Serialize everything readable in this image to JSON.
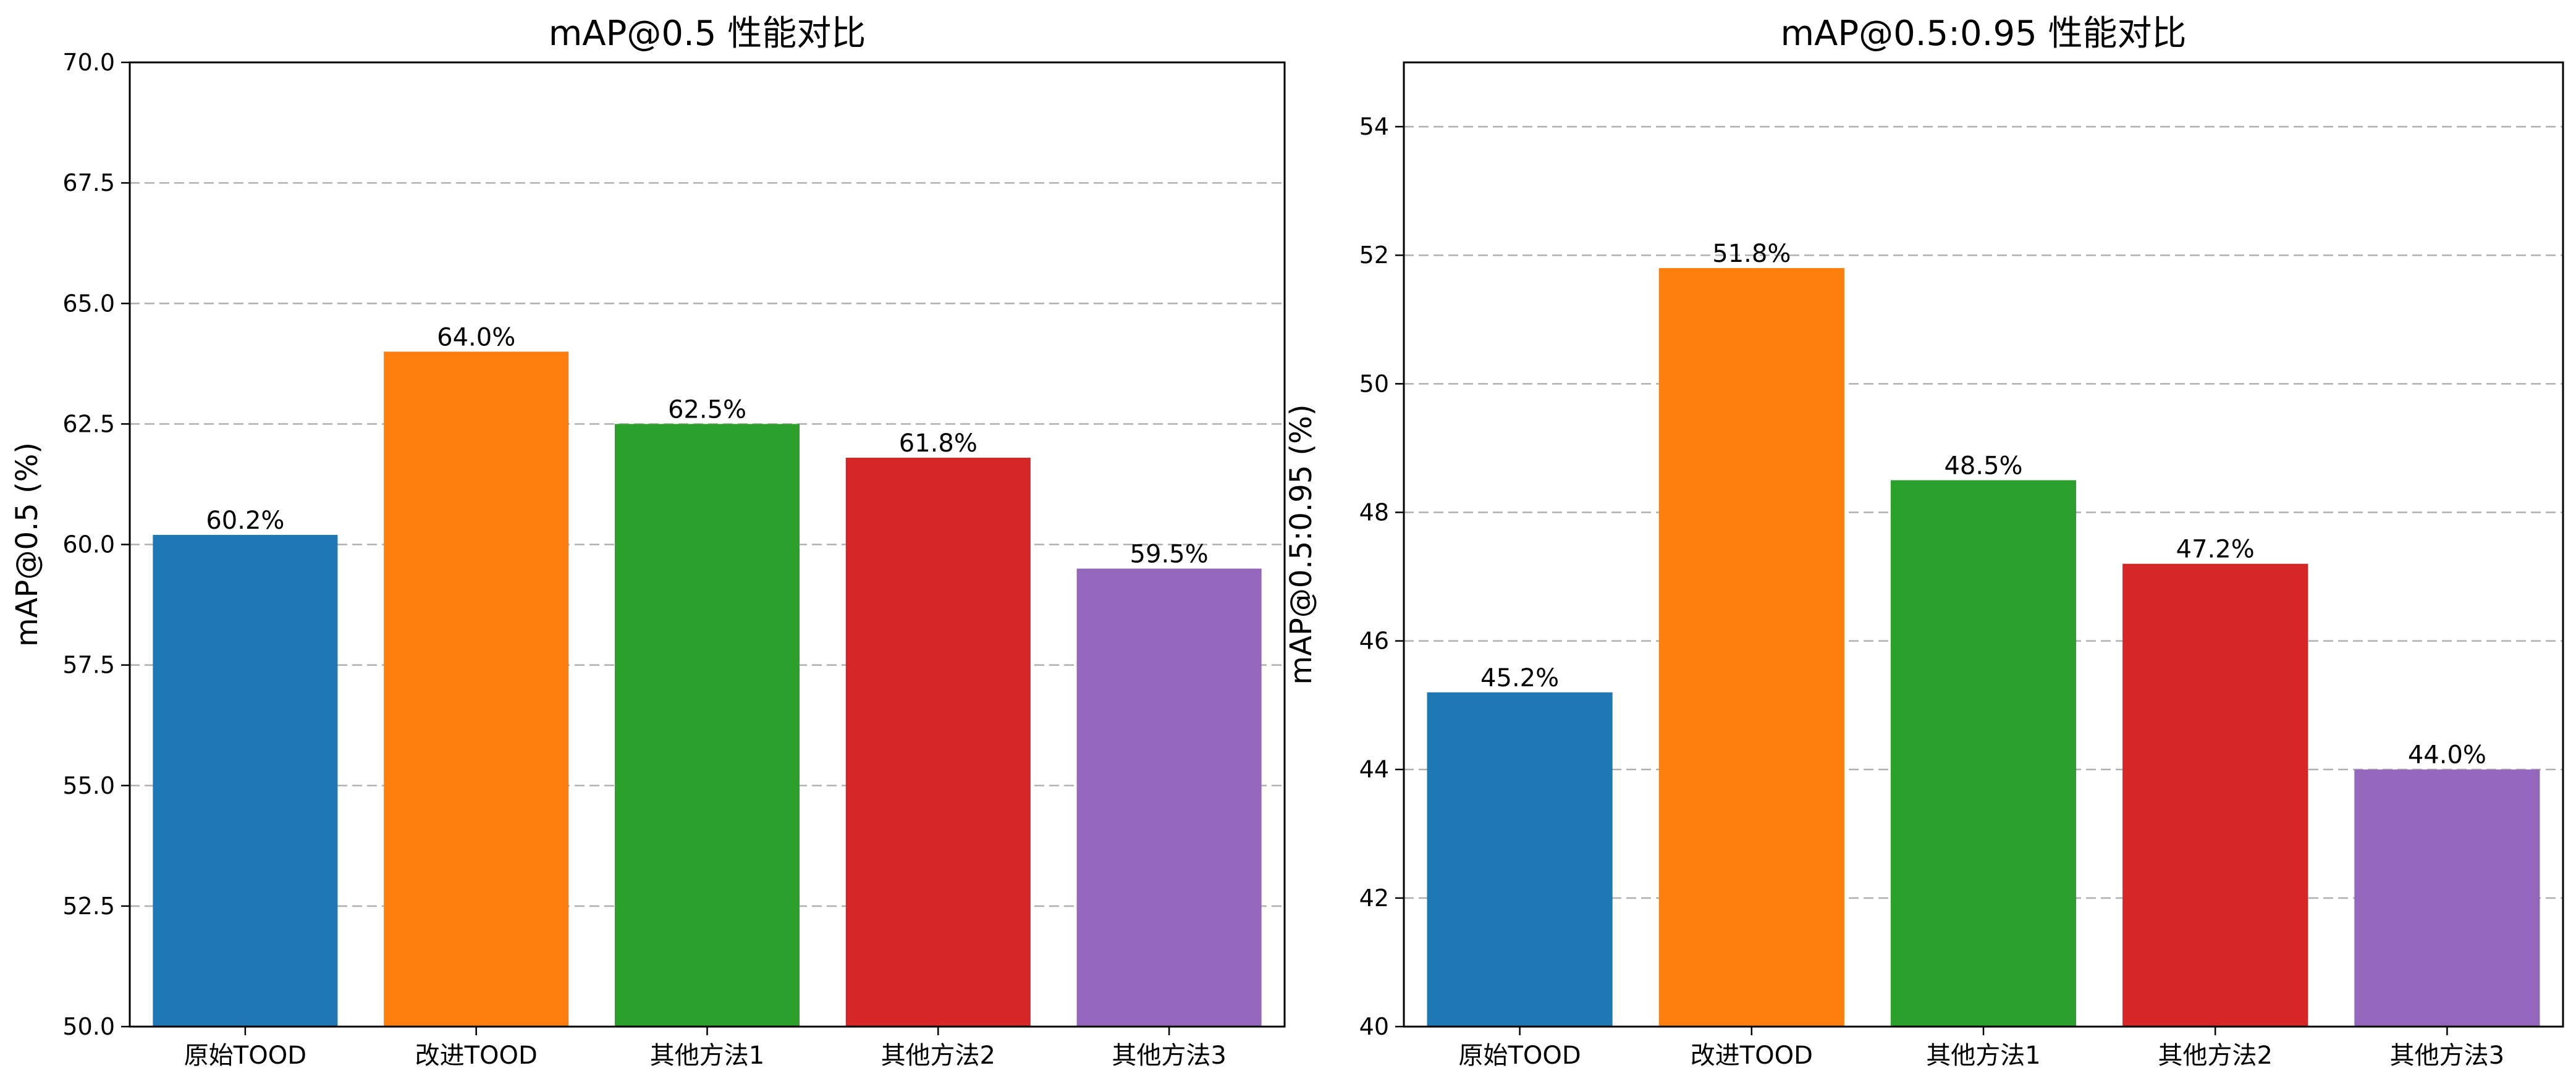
{
  "chart_data": [
    {
      "type": "bar",
      "title": "mAP@0.5 性能对比",
      "xlabel": "",
      "ylabel": "mAP@0.5 (%)",
      "categories": [
        "原始TOOD",
        "改进TOOD",
        "其他方法1",
        "其他方法2",
        "其他方法3"
      ],
      "values": [
        60.2,
        64.0,
        62.5,
        61.8,
        59.5
      ],
      "value_labels": [
        "60.2%",
        "64.0%",
        "62.5%",
        "61.8%",
        "59.5%"
      ],
      "colors": [
        "#1f77b4",
        "#ff7f0e",
        "#2ca02c",
        "#d62728",
        "#9467bd"
      ],
      "ylim": [
        50,
        70
      ],
      "yticks": [
        50.0,
        52.5,
        55.0,
        57.5,
        60.0,
        62.5,
        65.0,
        67.5,
        70.0
      ],
      "ytick_labels": [
        "50.0",
        "52.5",
        "55.0",
        "57.5",
        "60.0",
        "62.5",
        "65.0",
        "67.5",
        "70.0"
      ],
      "grid": "y-dashed"
    },
    {
      "type": "bar",
      "title": "mAP@0.5:0.95 性能对比",
      "xlabel": "",
      "ylabel": "mAP@0.5:0.95 (%)",
      "categories": [
        "原始TOOD",
        "改进TOOD",
        "其他方法1",
        "其他方法2",
        "其他方法3"
      ],
      "values": [
        45.2,
        51.8,
        48.5,
        47.2,
        44.0
      ],
      "value_labels": [
        "45.2%",
        "51.8%",
        "48.5%",
        "47.2%",
        "44.0%"
      ],
      "colors": [
        "#1f77b4",
        "#ff7f0e",
        "#2ca02c",
        "#d62728",
        "#9467bd"
      ],
      "ylim": [
        40,
        55
      ],
      "yticks": [
        40,
        42,
        44,
        46,
        48,
        50,
        52,
        54
      ],
      "ytick_labels": [
        "40",
        "42",
        "44",
        "46",
        "48",
        "50",
        "52",
        "54"
      ],
      "grid": "y-dashed"
    }
  ]
}
